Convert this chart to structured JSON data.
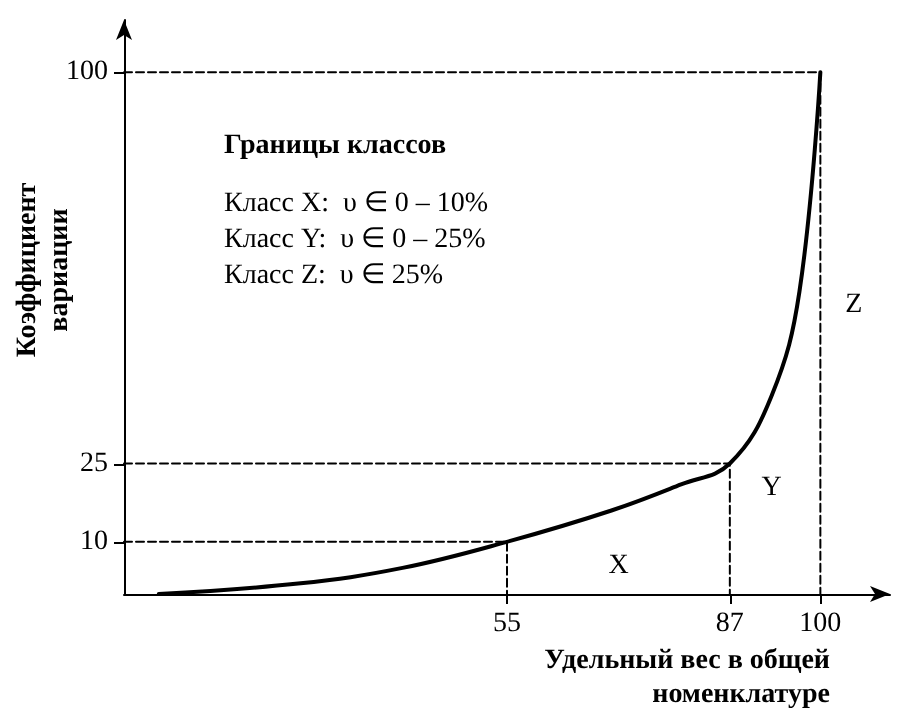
{
  "chart_data": {
    "type": "line",
    "xlabel": "Удельный вес в общей\nноменклатуре",
    "ylabel": "Коэффициент\nвариации",
    "series": [
      {
        "x": [
          5,
          25,
          40,
          55,
          70,
          80,
          87,
          93,
          97,
          100
        ],
        "values": [
          0,
          2,
          5,
          10,
          16,
          21,
          25,
          38,
          58,
          100
        ],
        "color": "#000000",
        "line_style": "solid"
      },
      {
        "x": [
          0,
          55,
          55
        ],
        "values": [
          10,
          10,
          0
        ],
        "color": "#000000",
        "line_style": "dashed"
      },
      {
        "x": [
          0,
          87,
          87
        ],
        "values": [
          25,
          25,
          0
        ],
        "color": "#000000",
        "line_style": "dashed"
      },
      {
        "x": [
          0,
          100,
          100
        ],
        "values": [
          100,
          100,
          0
        ],
        "color": "#000000",
        "line_style": "dashed"
      }
    ],
    "xlim": [
      0,
      110
    ],
    "xticks": [
      55,
      87,
      100
    ],
    "ylim": [
      0,
      110
    ],
    "yticks": [
      10,
      25,
      100
    ],
    "grid": false,
    "annotations": [
      "Границы классов",
      "Класс X:  υ ∈ 0 – 10%",
      "Класс Y:  υ ∈ 0 – 25%",
      "Класс Z:  υ ∈ 25%",
      "X",
      "Y",
      "Z"
    ]
  }
}
